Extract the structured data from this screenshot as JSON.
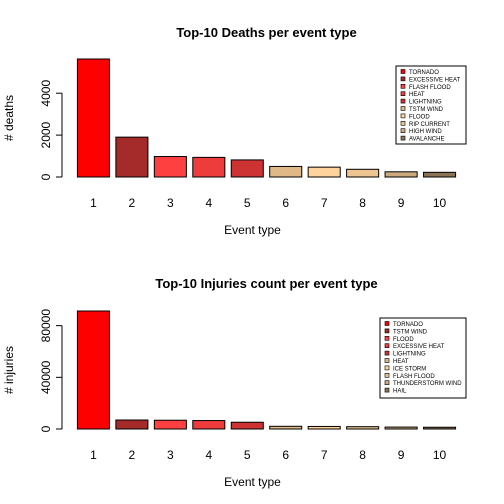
{
  "chart_data": [
    {
      "type": "bar",
      "title": "Top-10 Deaths per event type",
      "xlabel": "Event type",
      "ylabel": "# deaths",
      "categories": [
        "1",
        "2",
        "3",
        "4",
        "5",
        "6",
        "7",
        "8",
        "9",
        "10"
      ],
      "values": [
        5633,
        1903,
        978,
        937,
        816,
        504,
        470,
        368,
        248,
        224
      ],
      "yticks": [
        0,
        2000,
        4000
      ],
      "yticks_labels": [
        "0",
        "2000",
        "4000"
      ],
      "ylim": [
        0,
        5633
      ],
      "colors": [
        "#ff0000",
        "#a52a2a",
        "#ff4040",
        "#ee3b3b",
        "#cd3333",
        "#deb887",
        "#ffd39b",
        "#eec591",
        "#cdaa7d",
        "#8b7355"
      ],
      "legend": {
        "position": "top-right",
        "entries": [
          "TORNADO",
          "EXCESSIVE HEAT",
          "FLASH FLOOD",
          "HEAT",
          "LIGHTNING",
          "TSTM WIND",
          "FLOOD",
          "RIP CURRENT",
          "HIGH WIND",
          "AVALANCHE"
        ]
      }
    },
    {
      "type": "bar",
      "title": "Top-10 Injuries count per event type",
      "xlabel": "Event type",
      "ylabel": "# injuries",
      "categories": [
        "1",
        "2",
        "3",
        "4",
        "5",
        "6",
        "7",
        "8",
        "9",
        "10"
      ],
      "values": [
        91346,
        6957,
        6789,
        6525,
        5230,
        2100,
        1975,
        1777,
        1488,
        1361
      ],
      "yticks": [
        0,
        40000,
        80000
      ],
      "yticks_labels": [
        "0",
        "40000",
        "80000"
      ],
      "ylim": [
        0,
        91346
      ],
      "colors": [
        "#ff0000",
        "#a52a2a",
        "#ff4040",
        "#ee3b3b",
        "#cd3333",
        "#deb887",
        "#ffd39b",
        "#eec591",
        "#cdaa7d",
        "#8b7355"
      ],
      "legend": {
        "position": "top-right",
        "entries": [
          "TORNADO",
          "TSTM WIND",
          "FLOOD",
          "EXCESSIVE HEAT",
          "LIGHTNING",
          "HEAT",
          "ICE STORM",
          "FLASH FLOOD",
          "THUNDERSTORM WIND",
          "HAIL"
        ]
      }
    }
  ]
}
